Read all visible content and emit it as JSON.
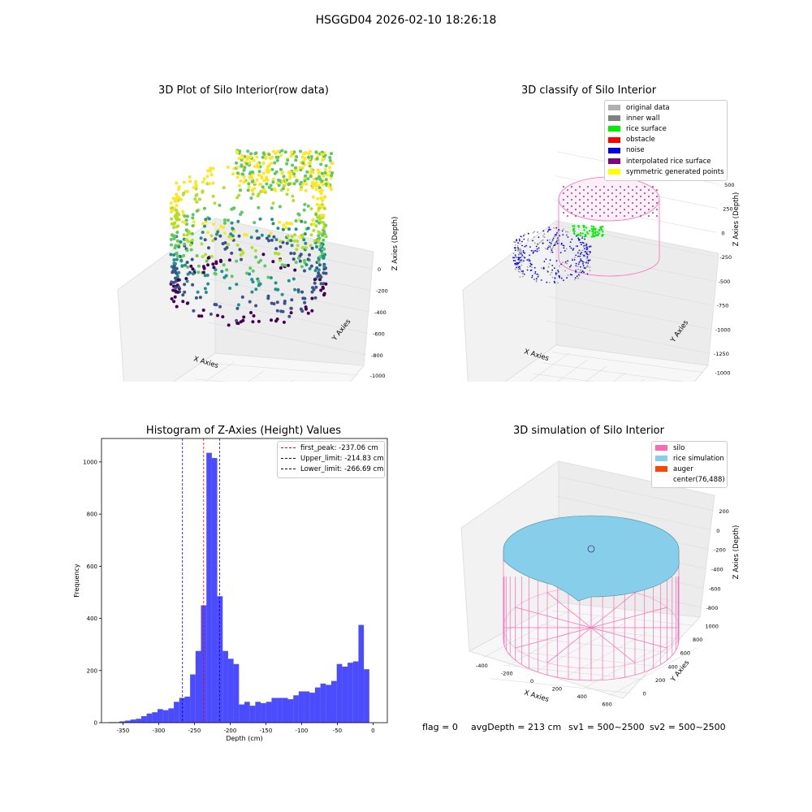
{
  "figure_title": "HSGGD04 2026-02-10 18:26:18",
  "panel1": {
    "title": "3D Plot of Silo Interior(row data)",
    "xlabel": "X Axies",
    "ylabel": "Y Axies",
    "zlabel": "Z Axies (Depth)",
    "xticks": [
      "-400",
      "-200",
      "0",
      "200",
      "400"
    ],
    "yticks": [
      "0",
      "-200",
      "-400",
      "-600",
      "-800",
      "-1000"
    ],
    "zticks": [
      "0",
      "-200",
      "-400",
      "-600",
      "-800"
    ]
  },
  "panel2": {
    "title": "3D classify of Silo Interior",
    "xlabel": "X Axies",
    "ylabel": "Y Axies",
    "zlabel": "Z Axies (Depth)",
    "xticks": [
      "-750",
      "-500",
      "-250",
      "0",
      "250",
      "500",
      "750",
      "1000"
    ],
    "yticks": [
      "1000",
      "750",
      "500",
      "250",
      "0",
      "-250",
      "-500",
      "-750",
      "-1000"
    ],
    "zticks": [
      "500",
      "250",
      "0",
      "-250",
      "-500",
      "-750",
      "-1000",
      "-1250"
    ],
    "zticks_hidden": [
      "750"
    ],
    "legend": [
      {
        "label": "original data",
        "color": "#b0b0b0"
      },
      {
        "label": "inner wall",
        "color": "#808080"
      },
      {
        "label": "rice surface",
        "color": "#00ee00"
      },
      {
        "label": "obstacle",
        "color": "#ff0000"
      },
      {
        "label": "noise",
        "color": "#0000ee"
      },
      {
        "label": "interpolated rice surface",
        "color": "#800080"
      },
      {
        "label": "symmetric generated points",
        "color": "#ffff00"
      }
    ]
  },
  "panel4": {
    "title": "3D simulation of Silo Interior",
    "xlabel": "X Axies",
    "ylabel": "Y Axies",
    "zlabel": "Z Axies (Depth)",
    "xticks": [
      "-400",
      "-200",
      "0",
      "200",
      "400",
      "600"
    ],
    "yticks": [
      "0",
      "200",
      "400",
      "600",
      "800",
      "1000"
    ],
    "zticks": [
      "200",
      "0",
      "-200",
      "-400",
      "-600",
      "-800"
    ],
    "legend": [
      {
        "label": "silo",
        "color": "#ff69b4"
      },
      {
        "label": "rice simulation",
        "color": "#87ceeb"
      },
      {
        "label": "auger",
        "color": "#ff4500"
      },
      {
        "label": "center(76,488)",
        "color": ""
      }
    ]
  },
  "status": {
    "flag": "flag = 0",
    "avg_depth": "avgDepth = 213 cm",
    "sv1": "sv1 = 500~2500",
    "sv2": "sv2 = 500~2500"
  },
  "chart_data": {
    "type": "bar",
    "title": "Histogram of Z-Axies (Height) Values",
    "xlabel": "Depth (cm)",
    "ylabel": "Frequency",
    "xlim": [
      -380,
      20
    ],
    "ylim": [
      0,
      1090
    ],
    "xticks": [
      -350,
      -300,
      -250,
      -200,
      -150,
      -100,
      -50,
      0
    ],
    "yticks": [
      0,
      200,
      400,
      600,
      800,
      1000
    ],
    "bin_width": 7.6,
    "bins_start": [
      -370,
      -362.4,
      -354.8,
      -347.2,
      -339.6,
      -332,
      -324.4,
      -316.8,
      -309.2,
      -301.6,
      -294,
      -286.4,
      -278.8,
      -271.2,
      -263.6,
      -256,
      -248.4,
      -240.8,
      -233.2,
      -225.6,
      -218,
      -210.4,
      -202.8,
      -195.2,
      -187.6,
      -180,
      -172.4,
      -164.8,
      -157.2,
      -149.6,
      -142,
      -134.4,
      -126.8,
      -119.2,
      -111.6,
      -104,
      -96.4,
      -88.8,
      -81.2,
      -73.6,
      -66,
      -58.4,
      -50.8,
      -43.2,
      -35.6,
      -28,
      -20.4,
      -12.8
    ],
    "values": [
      2,
      2,
      5,
      8,
      12,
      15,
      25,
      35,
      40,
      52,
      48,
      55,
      80,
      95,
      100,
      185,
      275,
      450,
      1035,
      1015,
      485,
      275,
      245,
      225,
      70,
      80,
      65,
      80,
      75,
      80,
      95,
      95,
      95,
      90,
      105,
      120,
      120,
      115,
      135,
      150,
      145,
      160,
      225,
      215,
      230,
      235,
      375,
      205
    ],
    "color": "#0000ff",
    "vlines": [
      {
        "label": "first_peak: -237.06 cm",
        "x": -237.06,
        "color": "#ff0000"
      },
      {
        "label": "Upper_limit: -214.83 cm",
        "x": -214.83,
        "color": "#0000cc"
      },
      {
        "label": "Lower_limit: -266.69 cm",
        "x": -266.69,
        "color": "#0000cc"
      }
    ],
    "legend_position": "upper right"
  }
}
